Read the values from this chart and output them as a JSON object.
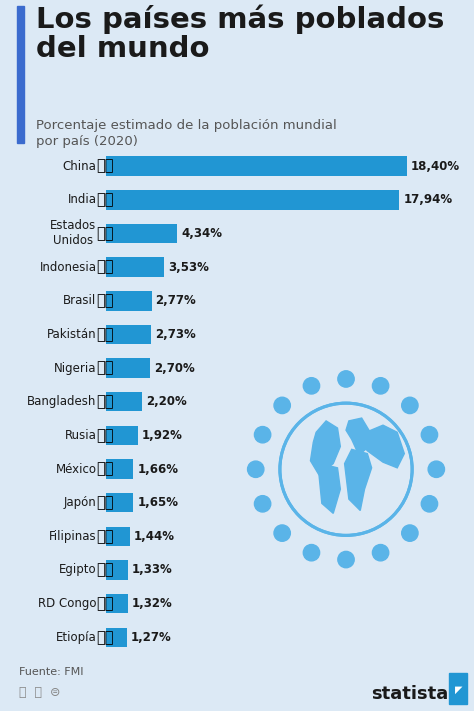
{
  "title_line1": "Los países más poblados",
  "title_line2": "del mundo",
  "subtitle": "Porcentaje estimado de la población mundial\npor país (2020)",
  "source": "Fuente: FMI",
  "bar_color": "#2196d3",
  "bg_color": "#dce9f5",
  "title_color": "#1a1a1a",
  "subtitle_color": "#555555",
  "accent_color": "#3b6bce",
  "globe_color": "#5ab4e8",
  "countries": [
    "China",
    "India",
    "Estados\nUnidos",
    "Indonesia",
    "Brasil",
    "Pakistán",
    "Nigeria",
    "Bangladesh",
    "Rusia",
    "México",
    "Japón",
    "Filipinas",
    "Egipto",
    "RD Congo",
    "Etiopía"
  ],
  "values": [
    18.4,
    17.94,
    4.34,
    3.53,
    2.77,
    2.73,
    2.7,
    2.2,
    1.92,
    1.66,
    1.65,
    1.44,
    1.33,
    1.32,
    1.27
  ],
  "labels": [
    "18,40%",
    "17,94%",
    "4,34%",
    "3,53%",
    "2,77%",
    "2,73%",
    "2,70%",
    "2,20%",
    "1,92%",
    "1,66%",
    "1,65%",
    "1,44%",
    "1,33%",
    "1,32%",
    "1,27%"
  ],
  "flags": [
    "🇨🇳",
    "🇮🇳",
    "🇺🇸",
    "🇮🇩",
    "🇧🇷",
    "🇵🇰",
    "🇳🇬",
    "🇧🇩",
    "🇷🇺",
    "🇲🇽",
    "🇯🇵",
    "🇵🇭",
    "🇪🇬",
    "🇨🇩",
    "🇪🇹"
  ],
  "max_val": 20.0,
  "title_fontsize": 21,
  "subtitle_fontsize": 9.5,
  "label_fontsize": 8.5,
  "country_fontsize": 8.5,
  "source_fontsize": 8
}
